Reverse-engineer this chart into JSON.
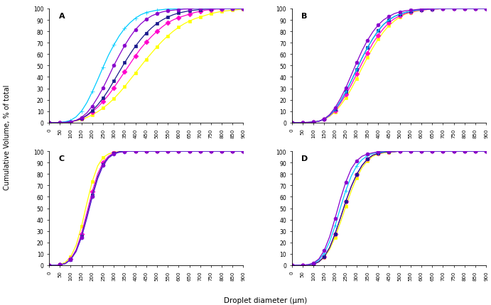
{
  "xlabel": "Droplet diameter (μm)",
  "ylabel": "Cumulative Volume, % of total",
  "subplot_labels": [
    "A",
    "B",
    "C",
    "D"
  ],
  "x": [
    0,
    25,
    50,
    75,
    100,
    125,
    150,
    175,
    200,
    225,
    250,
    275,
    300,
    325,
    350,
    375,
    400,
    425,
    450,
    475,
    500,
    525,
    550,
    575,
    600,
    625,
    650,
    675,
    700,
    725,
    750,
    775,
    800,
    825,
    850,
    875,
    900
  ],
  "xticks": [
    0,
    50,
    100,
    150,
    200,
    250,
    300,
    350,
    400,
    450,
    500,
    550,
    600,
    650,
    700,
    750,
    800,
    850,
    900
  ],
  "yticks": [
    0,
    10,
    20,
    30,
    40,
    50,
    60,
    70,
    80,
    90,
    100
  ],
  "colors": [
    "#ffff00",
    "#ff00cc",
    "#1a1a8c",
    "#00ccff",
    "#8800cc"
  ],
  "markers": [
    "s",
    "D",
    "s",
    "+",
    "o"
  ],
  "curves": {
    "A": [
      [
        0,
        0,
        0.1,
        0.3,
        0.7,
        1.5,
        2.8,
        4.5,
        6.8,
        9.5,
        12.8,
        16.5,
        21.0,
        26.0,
        31.5,
        37.5,
        43.5,
        49.5,
        55.5,
        61.0,
        66.5,
        71.5,
        76.0,
        80.0,
        83.5,
        86.5,
        89.0,
        91.0,
        92.5,
        94.0,
        95.5,
        96.5,
        97.5,
        98.0,
        98.5,
        99.0,
        99.5
      ],
      [
        0,
        0,
        0.1,
        0.3,
        0.8,
        1.8,
        3.5,
        6.0,
        9.5,
        13.5,
        18.5,
        24.0,
        30.5,
        37.5,
        44.5,
        51.5,
        58.5,
        65.0,
        70.5,
        75.5,
        80.0,
        84.0,
        87.5,
        90.0,
        92.0,
        93.5,
        95.0,
        96.5,
        97.5,
        98.5,
        99.0,
        99.5,
        99.5,
        100,
        100,
        100,
        100
      ],
      [
        0,
        0,
        0.1,
        0.3,
        0.8,
        1.8,
        3.5,
        6.5,
        10.5,
        15.5,
        21.5,
        28.5,
        36.5,
        44.5,
        52.5,
        60.0,
        67.0,
        73.0,
        78.5,
        83.0,
        87.0,
        90.0,
        92.5,
        94.5,
        96.0,
        97.0,
        98.0,
        98.5,
        99.0,
        99.5,
        99.5,
        100,
        100,
        100,
        100,
        100,
        100
      ],
      [
        0,
        0,
        0.2,
        0.8,
        2.0,
        5.0,
        10.0,
        17.5,
        27.0,
        37.5,
        48.5,
        59.0,
        68.0,
        76.0,
        82.5,
        87.5,
        91.5,
        94.5,
        96.5,
        97.5,
        98.5,
        99.0,
        99.5,
        99.5,
        100,
        100,
        100,
        100,
        100,
        100,
        100,
        100,
        100,
        100,
        100,
        100,
        100
      ],
      [
        0,
        0,
        0.1,
        0.3,
        0.8,
        2.0,
        4.5,
        8.5,
        14.5,
        22.0,
        30.5,
        40.0,
        50.0,
        59.0,
        67.5,
        75.0,
        81.5,
        86.5,
        90.5,
        93.5,
        95.5,
        97.0,
        98.0,
        98.5,
        99.0,
        99.5,
        99.5,
        100,
        100,
        100,
        100,
        100,
        100,
        100,
        100,
        100,
        100
      ]
    ],
    "B": [
      [
        0,
        0,
        0.1,
        0.2,
        0.5,
        1.2,
        2.8,
        5.5,
        9.5,
        15.0,
        21.5,
        29.5,
        38.5,
        48.0,
        57.0,
        65.5,
        73.0,
        79.5,
        85.0,
        89.0,
        92.5,
        95.0,
        96.5,
        97.5,
        98.5,
        99.0,
        99.5,
        99.5,
        100,
        100,
        100,
        100,
        100,
        100,
        100,
        100,
        100
      ],
      [
        0,
        0,
        0.1,
        0.2,
        0.5,
        1.2,
        3.0,
        6.0,
        10.5,
        17.0,
        24.5,
        33.0,
        42.5,
        52.0,
        61.0,
        69.5,
        76.5,
        82.5,
        87.5,
        91.0,
        93.5,
        95.5,
        97.0,
        98.0,
        98.5,
        99.0,
        99.5,
        99.5,
        100,
        100,
        100,
        100,
        100,
        100,
        100,
        100,
        100
      ],
      [
        0,
        0,
        0.1,
        0.2,
        0.5,
        1.2,
        3.0,
        6.5,
        11.5,
        18.5,
        27.0,
        36.5,
        46.5,
        56.5,
        65.5,
        73.5,
        80.5,
        86.0,
        90.0,
        93.0,
        95.0,
        96.5,
        97.5,
        98.5,
        99.0,
        99.5,
        99.5,
        100,
        100,
        100,
        100,
        100,
        100,
        100,
        100,
        100,
        100
      ],
      [
        0,
        0,
        0.1,
        0.2,
        0.5,
        1.2,
        3.0,
        6.5,
        11.5,
        18.5,
        27.0,
        36.5,
        46.5,
        56.5,
        65.5,
        73.5,
        80.5,
        86.0,
        90.0,
        93.0,
        95.0,
        96.5,
        97.5,
        98.5,
        99.0,
        99.5,
        99.5,
        100,
        100,
        100,
        100,
        100,
        100,
        100,
        100,
        100,
        100
      ],
      [
        0,
        0,
        0.1,
        0.2,
        0.5,
        1.2,
        3.2,
        7.0,
        13.0,
        21.0,
        30.5,
        41.5,
        52.5,
        63.0,
        72.0,
        79.5,
        85.5,
        90.0,
        93.0,
        95.5,
        97.0,
        98.0,
        98.5,
        99.0,
        99.5,
        99.5,
        100,
        100,
        100,
        100,
        100,
        100,
        100,
        100,
        100,
        100,
        100
      ]
    ],
    "C": [
      [
        0,
        0,
        0.5,
        2.5,
        7.5,
        17.5,
        34.0,
        54.5,
        73.5,
        87.0,
        94.5,
        97.5,
        99.0,
        99.5,
        100,
        100,
        100,
        100,
        100,
        100,
        100,
        100,
        100,
        100,
        100,
        100,
        100,
        100,
        100,
        100,
        100,
        100,
        100,
        100,
        100,
        100,
        100
      ],
      [
        0,
        0,
        0.3,
        1.5,
        5.5,
        13.5,
        27.5,
        46.0,
        64.5,
        80.0,
        90.0,
        95.5,
        98.5,
        99.5,
        100,
        100,
        100,
        100,
        100,
        100,
        100,
        100,
        100,
        100,
        100,
        100,
        100,
        100,
        100,
        100,
        100,
        100,
        100,
        100,
        100,
        100,
        100
      ],
      [
        0,
        0,
        0.3,
        1.5,
        5.0,
        12.5,
        25.5,
        43.0,
        61.5,
        77.5,
        88.5,
        94.5,
        98.0,
        99.5,
        100,
        100,
        100,
        100,
        100,
        100,
        100,
        100,
        100,
        100,
        100,
        100,
        100,
        100,
        100,
        100,
        100,
        100,
        100,
        100,
        100,
        100,
        100
      ],
      [
        0,
        0,
        0.3,
        1.5,
        5.0,
        12.0,
        24.5,
        41.5,
        60.0,
        76.0,
        87.5,
        94.0,
        97.5,
        99.0,
        99.5,
        100,
        100,
        100,
        100,
        100,
        100,
        100,
        100,
        100,
        100,
        100,
        100,
        100,
        100,
        100,
        100,
        100,
        100,
        100,
        100,
        100,
        100
      ],
      [
        0,
        0,
        0.3,
        1.5,
        5.0,
        12.0,
        24.5,
        41.5,
        60.0,
        76.0,
        87.5,
        94.0,
        97.5,
        99.0,
        99.5,
        100,
        100,
        100,
        100,
        100,
        100,
        100,
        100,
        100,
        100,
        100,
        100,
        100,
        100,
        100,
        100,
        100,
        100,
        100,
        100,
        100,
        100
      ]
    ],
    "D": [
      [
        0,
        0,
        0.1,
        0.3,
        1.0,
        3.0,
        7.0,
        14.0,
        24.5,
        37.5,
        51.5,
        65.0,
        76.5,
        85.5,
        91.5,
        95.5,
        97.5,
        98.5,
        99.0,
        99.5,
        100,
        100,
        100,
        100,
        100,
        100,
        100,
        100,
        100,
        100,
        100,
        100,
        100,
        100,
        100,
        100,
        100
      ],
      [
        0,
        0,
        0.1,
        0.3,
        1.0,
        3.0,
        7.5,
        15.5,
        27.5,
        41.5,
        56.0,
        69.0,
        79.5,
        87.5,
        93.0,
        96.5,
        98.0,
        99.0,
        99.5,
        99.5,
        100,
        100,
        100,
        100,
        100,
        100,
        100,
        100,
        100,
        100,
        100,
        100,
        100,
        100,
        100,
        100,
        100
      ],
      [
        0,
        0,
        0.1,
        0.3,
        1.0,
        3.0,
        7.5,
        15.5,
        27.5,
        41.5,
        56.0,
        69.0,
        79.5,
        87.5,
        93.0,
        96.5,
        98.0,
        99.0,
        99.5,
        99.5,
        100,
        100,
        100,
        100,
        100,
        100,
        100,
        100,
        100,
        100,
        100,
        100,
        100,
        100,
        100,
        100,
        100
      ],
      [
        0,
        0,
        0.1,
        0.5,
        1.5,
        4.5,
        10.5,
        20.5,
        34.5,
        50.5,
        65.5,
        78.0,
        87.0,
        92.5,
        96.0,
        98.0,
        99.0,
        99.5,
        100,
        100,
        100,
        100,
        100,
        100,
        100,
        100,
        100,
        100,
        100,
        100,
        100,
        100,
        100,
        100,
        100,
        100,
        100
      ],
      [
        0,
        0,
        0.1,
        0.5,
        2.0,
        5.5,
        13.0,
        25.0,
        41.0,
        58.0,
        73.0,
        84.5,
        91.5,
        95.5,
        97.5,
        98.5,
        99.5,
        100,
        100,
        100,
        100,
        100,
        100,
        100,
        100,
        100,
        100,
        100,
        100,
        100,
        100,
        100,
        100,
        100,
        100,
        100,
        100
      ]
    ]
  },
  "marker_size": 3.5,
  "linewidth": 0.9,
  "background": "#ffffff"
}
